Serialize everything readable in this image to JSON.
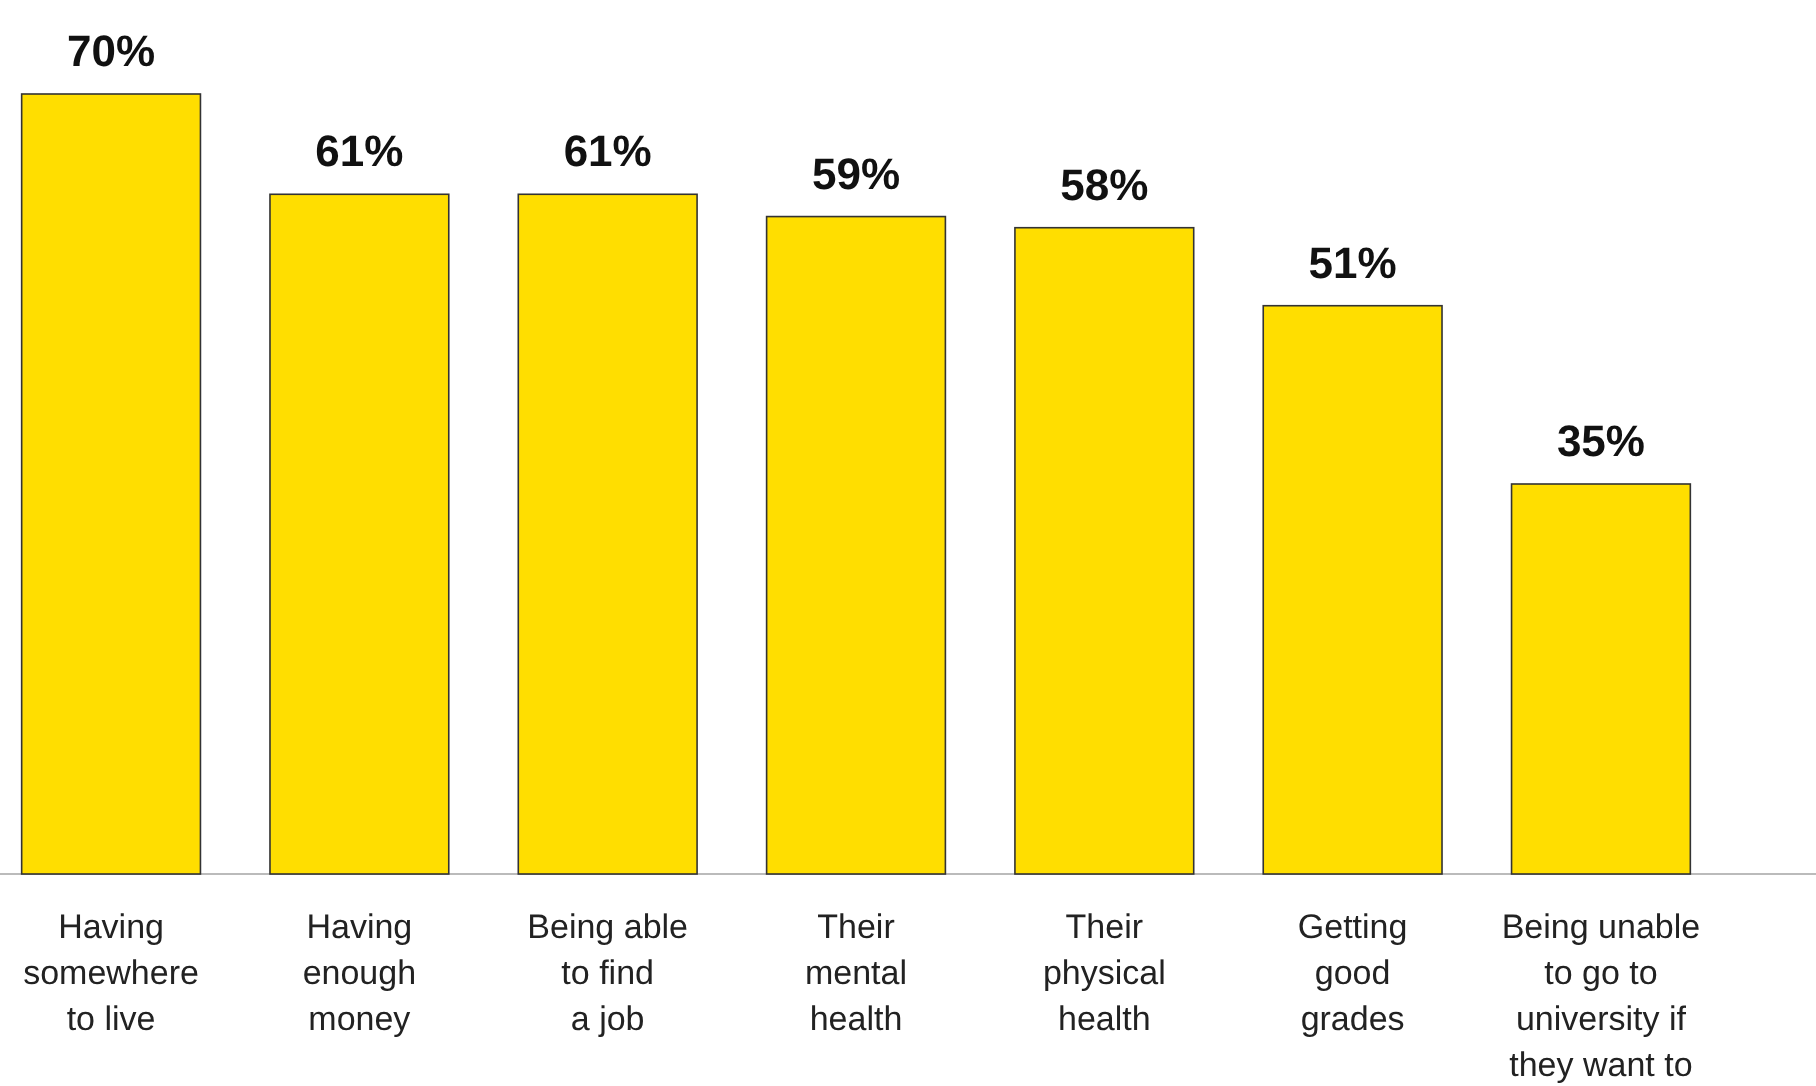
{
  "chart_data": {
    "type": "bar",
    "categories": [
      "Having\nsomewhere\nto live",
      "Having\nenough\nmoney",
      "Being able\nto find\na job",
      "Their\nmental\nhealth",
      "Their\nphysical\nhealth",
      "Getting\ngood\ngrades",
      "Being unable\nto go to\nuniversity if\nthey want to"
    ],
    "values": [
      70,
      61,
      61,
      59,
      58,
      51,
      35
    ],
    "value_labels": [
      "70%",
      "61%",
      "61%",
      "59%",
      "58%",
      "51%",
      "35%"
    ],
    "color": "#ffde00"
  }
}
